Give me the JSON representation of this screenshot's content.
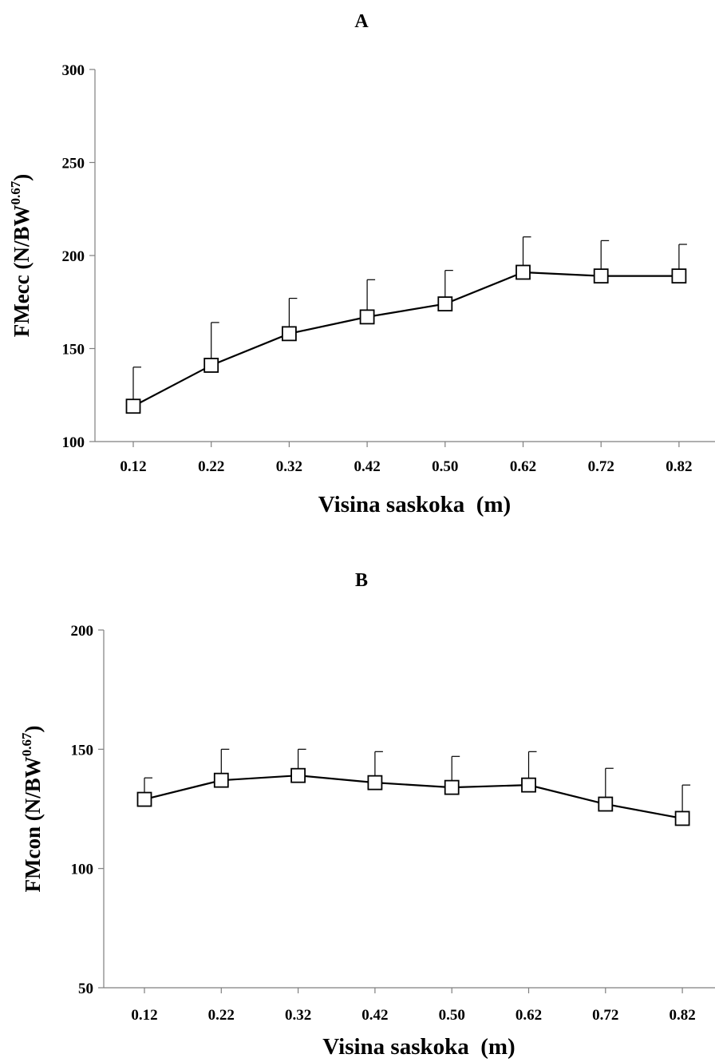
{
  "chart_data": [
    {
      "type": "line",
      "panel_label": "A",
      "xlabel": "Visina saskoka  (m)",
      "ylabel_main": "FMecc (N/BW",
      "ylabel_sup": "0.67",
      "ylabel_close": ")",
      "categories": [
        "0.12",
        "0.22",
        "0.32",
        "0.42",
        "0.50",
        "0.62",
        "0.72",
        "0.82"
      ],
      "ylim": [
        100,
        300
      ],
      "yticks": [
        100,
        150,
        200,
        250,
        300
      ],
      "series": [
        {
          "values": [
            119,
            141,
            158,
            167,
            174,
            191,
            189,
            189
          ],
          "error_upper": [
            140,
            164,
            177,
            187,
            192,
            210,
            208,
            206
          ],
          "marker": "open-square"
        }
      ],
      "grid": false,
      "line_color": "#000000"
    },
    {
      "type": "line",
      "panel_label": "B",
      "xlabel": "Visina saskoka  (m)",
      "ylabel_main": "FMcon (N/BW",
      "ylabel_sup": "0.67",
      "ylabel_close": ")",
      "categories": [
        "0.12",
        "0.22",
        "0.32",
        "0.42",
        "0.50",
        "0.62",
        "0.72",
        "0.82"
      ],
      "ylim": [
        50,
        200
      ],
      "yticks": [
        50,
        100,
        150,
        200
      ],
      "series": [
        {
          "values": [
            129,
            137,
            139,
            136,
            134,
            135,
            127,
            121
          ],
          "error_upper": [
            138,
            150,
            150,
            149,
            147,
            149,
            142,
            135
          ],
          "marker": "open-square"
        }
      ],
      "grid": false,
      "line_color": "#000000"
    }
  ]
}
